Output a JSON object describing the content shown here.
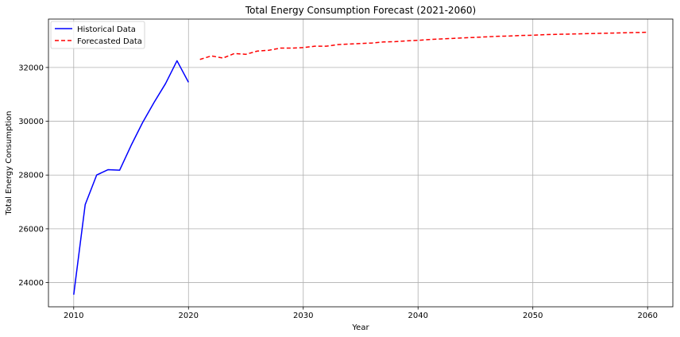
{
  "chart_data": {
    "type": "line",
    "title": "Total Energy Consumption Forecast (2021-2060)",
    "xlabel": "Year",
    "ylabel": "Total Energy Consumption",
    "xlim": [
      2007.8,
      2062.2
    ],
    "ylim": [
      23100,
      33800
    ],
    "x_ticks": [
      2010,
      2020,
      2030,
      2040,
      2050,
      2060
    ],
    "y_ticks": [
      24000,
      26000,
      28000,
      30000,
      32000
    ],
    "grid": true,
    "legend_position": "top-left",
    "series": [
      {
        "name": "Historical Data",
        "color": "#0000ff",
        "style": "solid",
        "x": [
          2010,
          2011,
          2012,
          2013,
          2014,
          2015,
          2016,
          2017,
          2018,
          2019,
          2020
        ],
        "y": [
          23550,
          26900,
          28000,
          28200,
          28180,
          29100,
          29950,
          30700,
          31400,
          32250,
          31450
        ]
      },
      {
        "name": "Forecasted Data",
        "color": "#ff0000",
        "style": "dashed",
        "x": [
          2021,
          2022,
          2023,
          2024,
          2025,
          2026,
          2027,
          2028,
          2029,
          2030,
          2031,
          2032,
          2033,
          2034,
          2035,
          2036,
          2037,
          2038,
          2039,
          2040,
          2041,
          2042,
          2043,
          2044,
          2045,
          2046,
          2047,
          2048,
          2049,
          2050,
          2051,
          2052,
          2053,
          2054,
          2055,
          2056,
          2057,
          2058,
          2059,
          2060
        ],
        "y": [
          32300,
          32430,
          32350,
          32520,
          32490,
          32610,
          32640,
          32720,
          32720,
          32740,
          32790,
          32790,
          32850,
          32870,
          32890,
          32910,
          32950,
          32960,
          32990,
          33010,
          33040,
          33060,
          33080,
          33100,
          33120,
          33140,
          33160,
          33170,
          33190,
          33200,
          33220,
          33230,
          33240,
          33250,
          33260,
          33270,
          33280,
          33290,
          33300,
          33310
        ]
      }
    ]
  }
}
